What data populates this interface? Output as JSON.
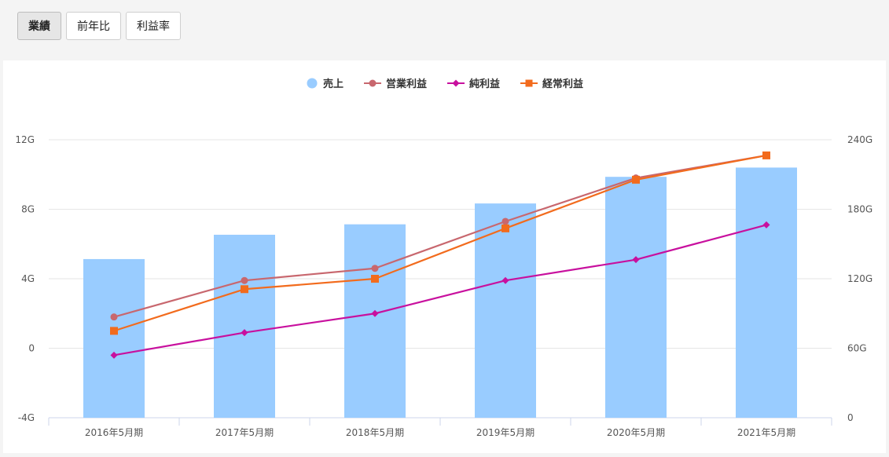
{
  "tabs": [
    {
      "label": "業績",
      "active": true
    },
    {
      "label": "前年比",
      "active": false
    },
    {
      "label": "利益率",
      "active": false
    }
  ],
  "chart_data": {
    "type": "bar+line",
    "categories": [
      "2016年5月期",
      "2017年5月期",
      "2018年5月期",
      "2019年5月期",
      "2020年5月期",
      "2021年5月期"
    ],
    "left_axis": {
      "ticks": [
        "12G",
        "8G",
        "4G",
        "0",
        "-4G"
      ],
      "min": -4,
      "max": 12,
      "unit": "G"
    },
    "right_axis": {
      "ticks": [
        "240G",
        "180G",
        "120G",
        "60G",
        "0"
      ],
      "min": 0,
      "max": 240,
      "unit": "G"
    },
    "grid": true,
    "legend_position": "top-center",
    "series": [
      {
        "name": "売上",
        "kind": "bar",
        "axis": "right",
        "color": "#99ccff",
        "marker": "circle",
        "values": [
          137,
          158,
          167,
          185,
          208,
          216
        ]
      },
      {
        "name": "営業利益",
        "kind": "line",
        "axis": "left",
        "color": "#c8676e",
        "marker": "circle",
        "values": [
          1.8,
          3.9,
          4.6,
          7.3,
          9.8,
          11.1
        ]
      },
      {
        "name": "純利益",
        "kind": "line",
        "axis": "left",
        "color": "#c8109e",
        "marker": "diamond",
        "values": [
          -0.4,
          0.9,
          2.0,
          3.9,
          5.1,
          7.1
        ]
      },
      {
        "name": "経常利益",
        "kind": "line",
        "axis": "left",
        "color": "#f26b1d",
        "marker": "square",
        "values": [
          1.0,
          3.4,
          4.0,
          6.9,
          9.7,
          11.1
        ]
      }
    ]
  }
}
